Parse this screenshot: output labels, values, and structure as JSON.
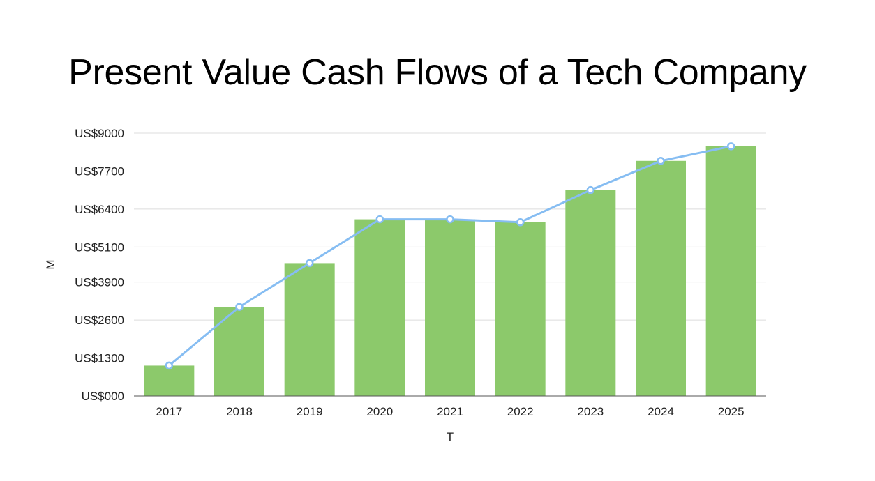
{
  "chart_data": {
    "type": "bar",
    "title": "Present Value Cash Flows of a Tech Company",
    "xlabel": "T",
    "ylabel": "M",
    "categories": [
      "2017",
      "2018",
      "2019",
      "2020",
      "2021",
      "2022",
      "2023",
      "2024",
      "2025"
    ],
    "series": [
      {
        "type": "bar",
        "values": [
          1040,
          3050,
          4550,
          6050,
          6050,
          5950,
          7050,
          8050,
          8550
        ],
        "color": "#8cc96b"
      },
      {
        "type": "line",
        "values": [
          1040,
          3050,
          4550,
          6050,
          6050,
          5950,
          7050,
          8050,
          8550
        ],
        "color": "#86bdf2"
      }
    ],
    "yticks": [
      0,
      1300,
      2600,
      3900,
      5100,
      6400,
      7700,
      9000
    ],
    "ytick_labels": [
      "US$000",
      "US$1300",
      "US$2600",
      "US$3900",
      "US$5100",
      "US$6400",
      "US$7700",
      "US$9000"
    ],
    "ylim": [
      0,
      9000
    ],
    "grid": true,
    "legend": "none"
  }
}
